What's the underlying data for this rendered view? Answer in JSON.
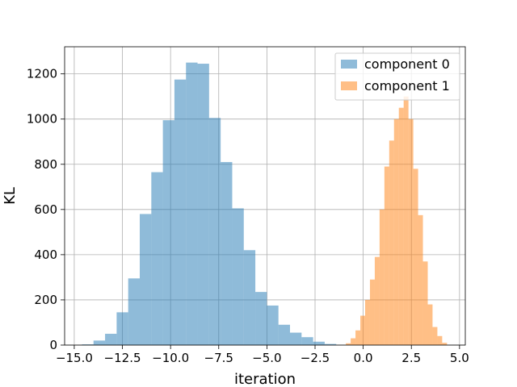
{
  "chart_data": {
    "type": "bar",
    "title": "",
    "xlabel": "iteration",
    "ylabel": "KL",
    "xlim": [
      -15.5,
      5.3
    ],
    "ylim": [
      0,
      1320
    ],
    "xticks": [
      -15.0,
      -12.5,
      -10.0,
      -7.5,
      -5.0,
      -2.5,
      0.0,
      2.5,
      5.0
    ],
    "xtick_labels": [
      "−15.0",
      "−12.5",
      "−10.0",
      "−7.5",
      "−5.0",
      "−2.5",
      "0.0",
      "2.5",
      "5.0"
    ],
    "yticks": [
      0,
      200,
      400,
      600,
      800,
      1000,
      1200
    ],
    "ytick_labels": [
      "0",
      "200",
      "400",
      "600",
      "800",
      "1000",
      "1200"
    ],
    "grid": true,
    "legend_position": "top-right",
    "series": [
      {
        "name": "component 0",
        "color": "#1f77b4",
        "alpha": 0.5,
        "bin_edges": [
          -14.6,
          -14.0,
          -13.4,
          -12.8,
          -12.2,
          -11.6,
          -11.0,
          -10.4,
          -9.8,
          -9.2,
          -8.6,
          -8.0,
          -7.4,
          -6.8,
          -6.2,
          -5.6,
          -5.0,
          -4.4,
          -3.8,
          -3.2,
          -2.6,
          -2.0,
          -1.4
        ],
        "counts": [
          3,
          20,
          50,
          145,
          295,
          580,
          765,
          995,
          1175,
          1250,
          1245,
          1005,
          810,
          605,
          420,
          235,
          175,
          90,
          55,
          35,
          15,
          5
        ]
      },
      {
        "name": "component 1",
        "color": "#ff7f0e",
        "alpha": 0.5,
        "bin_edges": [
          -0.9,
          -0.65,
          -0.4,
          -0.15,
          0.1,
          0.35,
          0.6,
          0.85,
          1.1,
          1.35,
          1.6,
          1.85,
          2.1,
          2.35,
          2.6,
          2.85,
          3.1,
          3.35,
          3.6,
          3.85,
          4.1,
          4.35
        ],
        "counts": [
          8,
          30,
          65,
          130,
          200,
          290,
          390,
          600,
          790,
          905,
          1000,
          1050,
          1100,
          1000,
          780,
          575,
          370,
          180,
          80,
          40,
          10
        ]
      }
    ]
  }
}
